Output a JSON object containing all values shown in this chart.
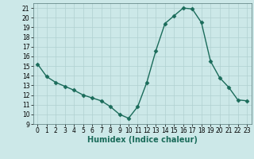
{
  "x": [
    0,
    1,
    2,
    3,
    4,
    5,
    6,
    7,
    8,
    9,
    10,
    11,
    12,
    13,
    14,
    15,
    16,
    17,
    18,
    19,
    20,
    21,
    22,
    23
  ],
  "y": [
    15.2,
    13.9,
    13.3,
    12.9,
    12.5,
    12.0,
    11.7,
    11.4,
    10.8,
    10.0,
    9.6,
    10.8,
    13.3,
    16.6,
    19.4,
    20.2,
    21.0,
    20.9,
    19.5,
    15.5,
    13.8,
    12.8,
    11.5,
    11.4
  ],
  "line_color": "#1a6b5a",
  "marker": "D",
  "markersize": 2.5,
  "bg_color": "#cce8e8",
  "grid_color": "#b0d0d0",
  "xlabel": "Humidex (Indice chaleur)",
  "xlim": [
    -0.5,
    23.5
  ],
  "ylim": [
    9,
    21.5
  ],
  "yticks": [
    9,
    10,
    11,
    12,
    13,
    14,
    15,
    16,
    17,
    18,
    19,
    20,
    21
  ],
  "xticks": [
    0,
    1,
    2,
    3,
    4,
    5,
    6,
    7,
    8,
    9,
    10,
    11,
    12,
    13,
    14,
    15,
    16,
    17,
    18,
    19,
    20,
    21,
    22,
    23
  ],
  "tick_fontsize": 5.5,
  "xlabel_fontsize": 7
}
